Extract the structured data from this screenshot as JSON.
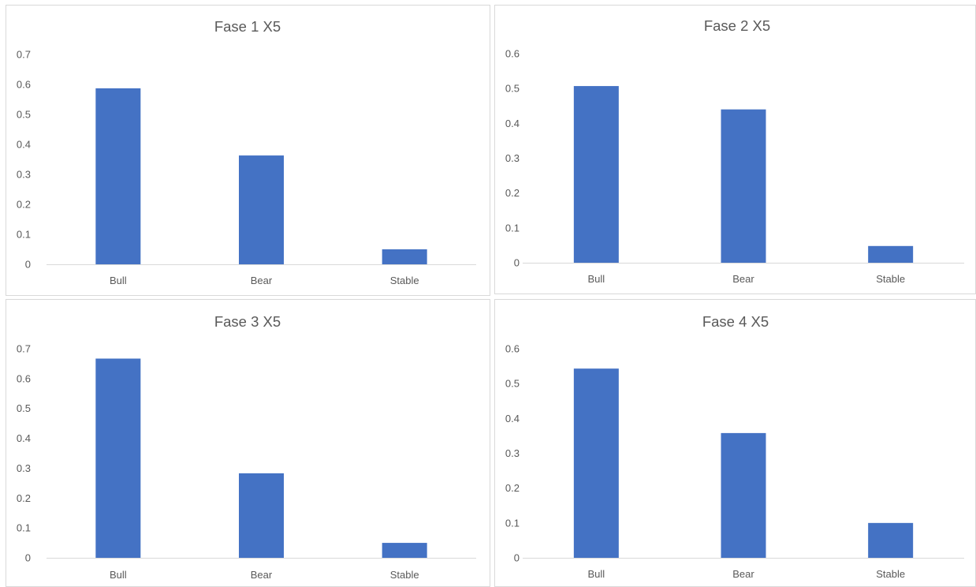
{
  "colors": {
    "bar": "#4472c4",
    "axis": "#d9d9d9",
    "text": "#595959"
  },
  "chart_data": [
    {
      "type": "bar",
      "title": "Fase 1 X5",
      "categories": [
        "Bull",
        "Bear",
        "Stable"
      ],
      "values": [
        0.587,
        0.363,
        0.05
      ],
      "yticks": [
        "0",
        "0.1",
        "0.2",
        "0.3",
        "0.4",
        "0.5",
        "0.6",
        "0.7"
      ],
      "ylim": [
        0,
        0.7
      ],
      "grid": false,
      "legend": "none"
    },
    {
      "type": "bar",
      "title": "Fase 2 X5",
      "categories": [
        "Bull",
        "Bear",
        "Stable"
      ],
      "values": [
        0.507,
        0.44,
        0.048
      ],
      "yticks": [
        "0",
        "0.1",
        "0.2",
        "0.3",
        "0.4",
        "0.5",
        "0.6"
      ],
      "ylim": [
        0,
        0.6
      ],
      "grid": false,
      "legend": "none"
    },
    {
      "type": "bar",
      "title": "Fase 3 X5",
      "categories": [
        "Bull",
        "Bear",
        "Stable"
      ],
      "values": [
        0.667,
        0.283,
        0.05
      ],
      "yticks": [
        "0",
        "0.1",
        "0.2",
        "0.3",
        "0.4",
        "0.5",
        "0.6",
        "0.7"
      ],
      "ylim": [
        0,
        0.7
      ],
      "grid": false,
      "legend": "none"
    },
    {
      "type": "bar",
      "title": "Fase 4 X5",
      "categories": [
        "Bull",
        "Bear",
        "Stable"
      ],
      "values": [
        0.543,
        0.358,
        0.1
      ],
      "yticks": [
        "0",
        "0.1",
        "0.2",
        "0.3",
        "0.4",
        "0.5",
        "0.6"
      ],
      "ylim": [
        0,
        0.6
      ],
      "grid": false,
      "legend": "none"
    }
  ]
}
